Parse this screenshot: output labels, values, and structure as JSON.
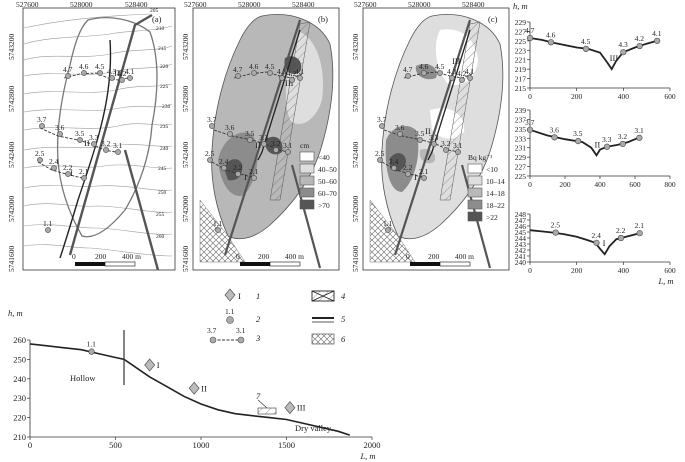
{
  "maps": {
    "panel_a": {
      "label": "(a)",
      "x_ticks": [
        "527600",
        "528000",
        "528400"
      ],
      "y_ticks": [
        "5743200",
        "5742800",
        "5742400",
        "5742000",
        "5741600"
      ],
      "scale": {
        "zero": "0",
        "mid": "200",
        "end": "400 m"
      },
      "section_labels": [
        "III",
        "II",
        "I"
      ],
      "contours": [
        "205",
        "210",
        "215",
        "220",
        "225",
        "230",
        "235",
        "240",
        "245",
        "250",
        "255",
        "260"
      ],
      "points": [
        "4.7",
        "4.6",
        "4.5",
        "4.3",
        "4.2",
        "4.1",
        "3.7",
        "3.6",
        "3.5",
        "3.3",
        "3.2",
        "3.1",
        "2.5",
        "2.4",
        "2.2",
        "2.1",
        "1.1"
      ]
    },
    "panel_b": {
      "label": "(b)",
      "x_ticks": [
        "527600",
        "528000",
        "528400"
      ],
      "y_ticks": [
        "5743200",
        "5742800",
        "5742400",
        "5742000",
        "5741600"
      ],
      "scale": {
        "zero": "0",
        "mid": "200",
        "end": "400 m"
      },
      "legend_unit": "cm",
      "legend": [
        {
          "label": "<40",
          "color": "#ffffff"
        },
        {
          "label": "40–50",
          "color": "#dedede"
        },
        {
          "label": "50–60",
          "color": "#b8b8b8"
        },
        {
          "label": "60–70",
          "color": "#8c8c8c"
        },
        {
          "label": ">70",
          "color": "#555555"
        }
      ],
      "section_labels": [
        "III",
        "II",
        "I"
      ],
      "points": [
        "4.7",
        "4.6",
        "4.5",
        "4.3",
        "4.2",
        "4.1",
        "3.7",
        "3.6",
        "3.5",
        "3.3",
        "3.2",
        "3.1",
        "2.5",
        "2.4",
        "2.2",
        "2.1",
        "1.1"
      ]
    },
    "panel_c": {
      "label": "(c)",
      "x_ticks": [
        "527600",
        "528000",
        "528400"
      ],
      "y_ticks": [
        "5743200",
        "5742800",
        "5742400",
        "5742000",
        "5741600"
      ],
      "scale": {
        "zero": "0",
        "mid": "200",
        "end": "400 m"
      },
      "legend_unit": "Bq kg⁻¹",
      "legend": [
        {
          "label": "<10",
          "color": "#ffffff"
        },
        {
          "label": "10–14",
          "color": "#dedede"
        },
        {
          "label": "14–18",
          "color": "#b8b8b8"
        },
        {
          "label": "18–22",
          "color": "#8c8c8c"
        },
        {
          "label": ">22",
          "color": "#555555"
        }
      ],
      "section_labels": [
        "III",
        "II",
        "I"
      ],
      "points": [
        "4.7",
        "4.6",
        "4.5",
        "4.3",
        "4.2",
        "4.1",
        "3.7",
        "3.6",
        "3.5",
        "3.3",
        "3.2",
        "3.1",
        "2.5",
        "2.4",
        "2.2",
        "2.1",
        "1.1"
      ]
    }
  },
  "legend_symbols": {
    "items": [
      {
        "num": "1",
        "sample": "I"
      },
      {
        "num": "2",
        "sample": "1.1"
      },
      {
        "num": "3",
        "sample_left": "3.7",
        "sample_right": "3.1"
      },
      {
        "num": "4"
      },
      {
        "num": "5"
      },
      {
        "num": "6"
      }
    ]
  },
  "chart_data": [
    {
      "type": "line",
      "title": "",
      "ylabel": "h, m",
      "xlabel": "",
      "xlim": [
        0,
        600
      ],
      "ylim": [
        215,
        229
      ],
      "x_ticks": [
        "0",
        "200",
        "400",
        "600"
      ],
      "y_ticks": [
        "229",
        "227",
        "225",
        "223",
        "221",
        "219",
        "217",
        "215"
      ],
      "section_label": "III",
      "series": [
        {
          "x": [
            0,
            50,
            100,
            150,
            200,
            250,
            300,
            330,
            350,
            370,
            400,
            450,
            500,
            550
          ],
          "y": [
            225.6,
            225.2,
            224.6,
            224.1,
            223.6,
            223.3,
            222.5,
            220.5,
            219.0,
            220.8,
            222.6,
            223.6,
            224.4,
            225.1
          ]
        }
      ],
      "points": [
        {
          "label": "4.7",
          "x": 0,
          "y": 225.6
        },
        {
          "label": "4.6",
          "x": 90,
          "y": 224.7
        },
        {
          "label": "4.5",
          "x": 240,
          "y": 223.3
        },
        {
          "label": "4.3",
          "x": 400,
          "y": 222.6
        },
        {
          "label": "4.2",
          "x": 470,
          "y": 223.9
        },
        {
          "label": "4.1",
          "x": 545,
          "y": 225.0
        }
      ]
    },
    {
      "type": "line",
      "title": "",
      "ylabel": "",
      "xlabel": "",
      "xlim": [
        0,
        800
      ],
      "ylim": [
        225,
        239
      ],
      "x_ticks": [
        "0",
        "200",
        "400",
        "600",
        "800"
      ],
      "y_ticks": [
        "239",
        "237",
        "235",
        "233",
        "231",
        "229",
        "227",
        "225"
      ],
      "section_label": "II",
      "series": [
        {
          "x": [
            0,
            100,
            200,
            300,
            350,
            380,
            400,
            440,
            500,
            560,
            620
          ],
          "y": [
            234.8,
            233.6,
            232.8,
            232.2,
            231.0,
            229.4,
            230.6,
            231.2,
            231.6,
            232.2,
            233.1
          ]
        }
      ],
      "points": [
        {
          "label": "3.7",
          "x": 0,
          "y": 234.8
        },
        {
          "label": "3.6",
          "x": 140,
          "y": 233.2
        },
        {
          "label": "3.5",
          "x": 275,
          "y": 232.4
        },
        {
          "label": "3.3",
          "x": 440,
          "y": 231.2
        },
        {
          "label": "3.2",
          "x": 530,
          "y": 231.8
        },
        {
          "label": "3.1",
          "x": 625,
          "y": 233.1
        }
      ]
    },
    {
      "type": "line",
      "title": "",
      "ylabel": "",
      "xlabel": "L, m",
      "xlim": [
        0,
        600
      ],
      "ylim": [
        240,
        248
      ],
      "x_ticks": [
        "0",
        "200",
        "400",
        "600"
      ],
      "y_ticks": [
        "248",
        "247",
        "246",
        "245",
        "244",
        "243",
        "242",
        "241",
        "240"
      ],
      "section_label": "I",
      "series": [
        {
          "x": [
            0,
            50,
            100,
            150,
            200,
            250,
            280,
            300,
            320,
            340,
            370,
            420,
            470
          ],
          "y": [
            245.3,
            245.1,
            244.9,
            244.6,
            244.2,
            243.6,
            243.2,
            242.2,
            241.3,
            242.6,
            243.8,
            244.3,
            244.8
          ]
        }
      ],
      "points": [
        {
          "label": "2.5",
          "x": 110,
          "y": 244.9
        },
        {
          "label": "2.4",
          "x": 285,
          "y": 243.2
        },
        {
          "label": "2.2",
          "x": 390,
          "y": 244.0
        },
        {
          "label": "2.1",
          "x": 470,
          "y": 244.8
        }
      ]
    },
    {
      "type": "line",
      "title": "",
      "ylabel": "h, m",
      "xlabel": "L, m",
      "xlim": [
        0,
        2000
      ],
      "ylim": [
        210,
        260
      ],
      "x_ticks": [
        "0",
        "500",
        "1000",
        "1500",
        "2000"
      ],
      "y_ticks": [
        "260",
        "250",
        "240",
        "230",
        "220",
        "210"
      ],
      "annotations": [
        "Hollow",
        "Dry valley",
        "7"
      ],
      "series": [
        {
          "x": [
            0,
            100,
            200,
            300,
            400,
            500,
            550,
            600,
            700,
            800,
            900,
            1000,
            1100,
            1200,
            1300,
            1400,
            1500,
            1600,
            1700,
            1800,
            1870
          ],
          "y": [
            258,
            257,
            256,
            255,
            253,
            251,
            250,
            247,
            241,
            236,
            231,
            227,
            224,
            222,
            221,
            220,
            219,
            217,
            215,
            213,
            211
          ]
        }
      ],
      "points": [
        {
          "label": "1.1",
          "x": 360,
          "y": 254
        },
        {
          "label": "I",
          "x": 700,
          "y": 243
        },
        {
          "label": "II",
          "x": 960,
          "y": 231
        },
        {
          "label": "III",
          "x": 1520,
          "y": 221
        }
      ]
    }
  ]
}
